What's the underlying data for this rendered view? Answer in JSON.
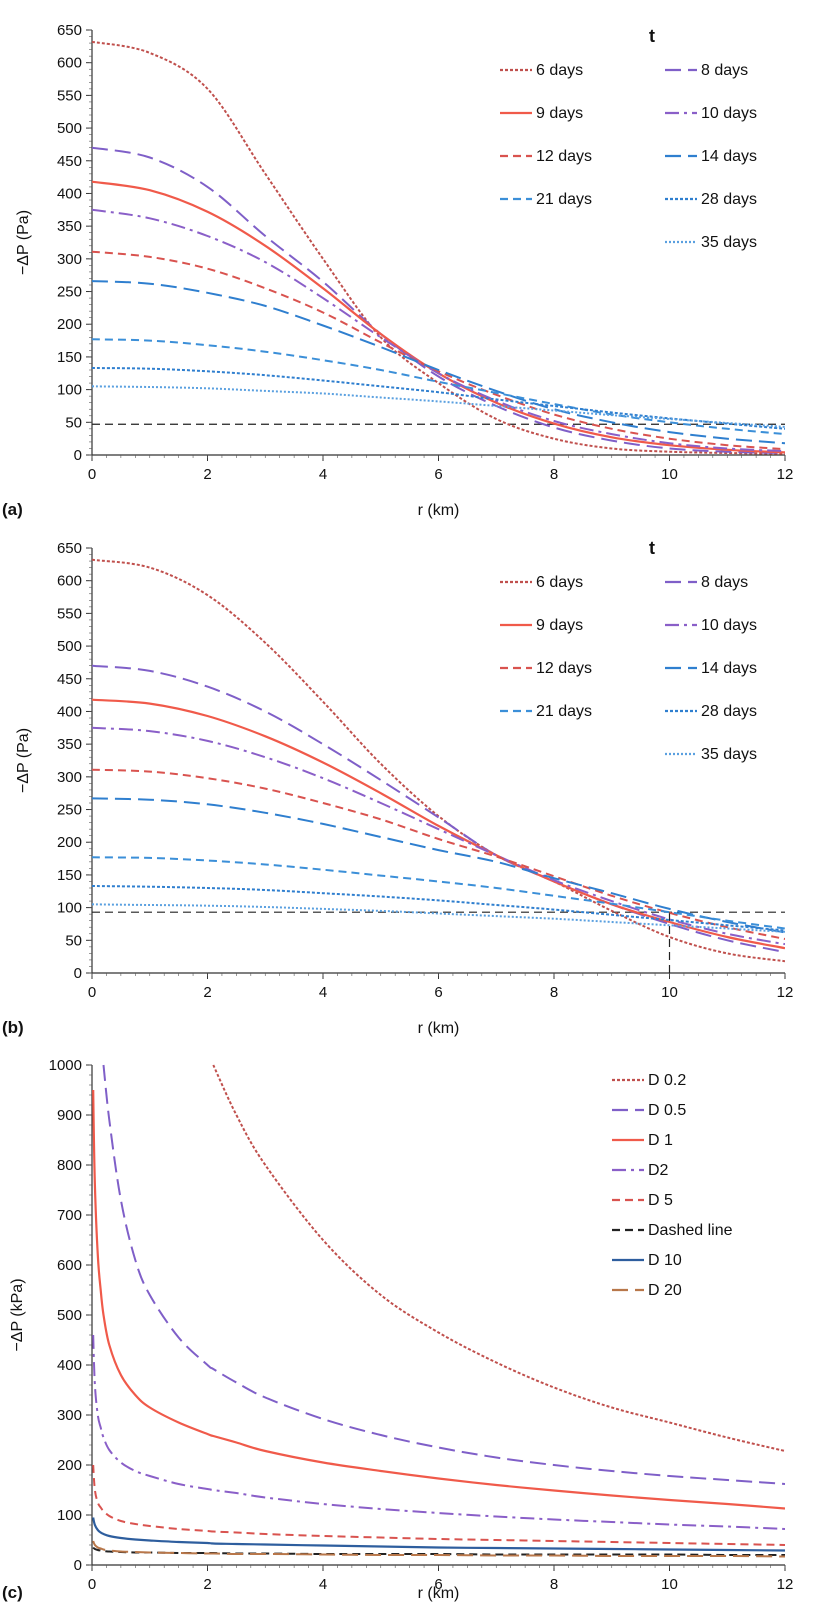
{
  "figure": {
    "panels": [
      "(a)",
      "(b)",
      "(c)"
    ]
  },
  "chart_data": [
    {
      "type": "line",
      "panel_label": "(a)",
      "xlabel": "r (km)",
      "ylabel": "−ΔP (Pa)",
      "xlim": [
        0,
        12
      ],
      "ylim": [
        0,
        650
      ],
      "xticks": [
        0,
        2,
        4,
        6,
        8,
        10,
        12
      ],
      "yticks": [
        0,
        50,
        100,
        150,
        200,
        250,
        300,
        350,
        400,
        450,
        500,
        550,
        600,
        650
      ],
      "grid": false,
      "legend_title": "t",
      "legend_position": "top-right",
      "x": [
        0,
        1,
        2,
        3,
        4,
        5,
        6,
        7,
        8,
        9,
        10,
        11,
        12
      ],
      "series": [
        {
          "name": "6  days",
          "color": "#c0504d",
          "style": "dotted-dense",
          "values": [
            632,
            615,
            560,
            430,
            300,
            180,
            110,
            55,
            25,
            10,
            5,
            3,
            2
          ]
        },
        {
          "name": "8  days",
          "color": "#7f5fc8",
          "style": "long-dash",
          "values": [
            470,
            455,
            410,
            335,
            265,
            185,
            120,
            75,
            42,
            22,
            10,
            5,
            3
          ]
        },
        {
          "name": "9  days",
          "color": "#f05a4a",
          "style": "solid",
          "values": [
            418,
            405,
            372,
            320,
            255,
            185,
            125,
            80,
            48,
            27,
            15,
            8,
            4
          ]
        },
        {
          "name": "10  days",
          "color": "#8a5fc8",
          "style": "dash-dot",
          "values": [
            375,
            362,
            335,
            295,
            240,
            180,
            125,
            83,
            52,
            32,
            18,
            10,
            6
          ]
        },
        {
          "name": "12  days",
          "color": "#d9534f",
          "style": "dash",
          "values": [
            311,
            303,
            285,
            255,
            218,
            172,
            128,
            92,
            62,
            40,
            25,
            15,
            9
          ]
        },
        {
          "name": "14  days",
          "color": "#2f7fcf",
          "style": "long-dash",
          "values": [
            266,
            262,
            248,
            228,
            198,
            165,
            130,
            98,
            70,
            50,
            35,
            25,
            18
          ]
        },
        {
          "name": "21  days",
          "color": "#3b8fd8",
          "style": "dash",
          "values": [
            177,
            175,
            168,
            158,
            145,
            130,
            112,
            95,
            78,
            62,
            50,
            40,
            32
          ]
        },
        {
          "name": "28 days",
          "color": "#2f7fcf",
          "style": "dotted-dense",
          "values": [
            133,
            132,
            128,
            122,
            114,
            105,
            96,
            85,
            75,
            65,
            56,
            48,
            40
          ]
        },
        {
          "name": "35  days",
          "color": "#5aa0e0",
          "style": "dotted",
          "values": [
            105,
            104,
            102,
            98,
            94,
            88,
            82,
            75,
            68,
            61,
            55,
            49,
            43
          ]
        }
      ],
      "reference_lines": [
        {
          "orientation": "horizontal",
          "value": 47,
          "from": 0,
          "to": 12,
          "color": "#222222",
          "style": "dash"
        }
      ]
    },
    {
      "type": "line",
      "panel_label": "(b)",
      "xlabel": "r (km)",
      "ylabel": "−ΔP (Pa)",
      "xlim": [
        0,
        12
      ],
      "ylim": [
        0,
        650
      ],
      "xticks": [
        0,
        2,
        4,
        6,
        8,
        10,
        12
      ],
      "yticks": [
        0,
        50,
        100,
        150,
        200,
        250,
        300,
        350,
        400,
        450,
        500,
        550,
        600,
        650
      ],
      "grid": false,
      "legend_title": "t",
      "legend_position": "top-right",
      "x": [
        0,
        1,
        2,
        3,
        4,
        5,
        6,
        7,
        8,
        9,
        10,
        11,
        12
      ],
      "series": [
        {
          "name": "6  days",
          "color": "#c0504d",
          "style": "dotted-dense",
          "values": [
            632,
            620,
            578,
            505,
            415,
            320,
            240,
            180,
            140,
            95,
            55,
            30,
            18
          ]
        },
        {
          "name": "8  days",
          "color": "#7f5fc8",
          "style": "long-dash",
          "values": [
            470,
            462,
            438,
            400,
            350,
            295,
            238,
            180,
            140,
            105,
            75,
            50,
            32
          ]
        },
        {
          "name": "9  days",
          "color": "#f05a4a",
          "style": "solid",
          "values": [
            418,
            412,
            393,
            362,
            322,
            275,
            225,
            180,
            140,
            105,
            78,
            55,
            38
          ]
        },
        {
          "name": "10  days",
          "color": "#8a5fc8",
          "style": "dash-dot",
          "values": [
            375,
            370,
            355,
            330,
            298,
            260,
            220,
            180,
            142,
            110,
            82,
            60,
            44
          ]
        },
        {
          "name": "12  days",
          "color": "#d9534f",
          "style": "dash",
          "values": [
            311,
            308,
            298,
            282,
            260,
            235,
            205,
            178,
            148,
            118,
            92,
            70,
            52
          ]
        },
        {
          "name": "14  days",
          "color": "#2f7fcf",
          "style": "long-dash",
          "values": [
            267,
            265,
            258,
            245,
            228,
            208,
            188,
            170,
            145,
            122,
            98,
            78,
            62
          ]
        },
        {
          "name": "21  days",
          "color": "#3b8fd8",
          "style": "dash",
          "values": [
            177,
            176,
            172,
            166,
            158,
            149,
            140,
            130,
            118,
            106,
            93,
            80,
            68
          ]
        },
        {
          "name": "28 days",
          "color": "#2f7fcf",
          "style": "dotted-dense",
          "values": [
            133,
            132,
            130,
            127,
            122,
            117,
            111,
            104,
            97,
            89,
            81,
            73,
            65
          ]
        },
        {
          "name": "35  days",
          "color": "#5aa0e0",
          "style": "dotted",
          "values": [
            105,
            104,
            103,
            101,
            98,
            95,
            91,
            87,
            83,
            78,
            73,
            68,
            63
          ]
        }
      ],
      "reference_lines": [
        {
          "orientation": "horizontal",
          "value": 93,
          "from": 0,
          "to": 12,
          "color": "#222222",
          "style": "dash"
        },
        {
          "orientation": "vertical",
          "value": 10,
          "from": 0,
          "to": 93,
          "color": "#222222",
          "style": "dash"
        }
      ]
    },
    {
      "type": "line",
      "panel_label": "(c)",
      "xlabel": "r (km)",
      "ylabel": "−ΔP (kPa)",
      "xlim": [
        0,
        12
      ],
      "ylim": [
        0,
        1000
      ],
      "xticks": [
        0,
        2,
        4,
        6,
        8,
        10,
        12
      ],
      "yticks": [
        0,
        100,
        200,
        300,
        400,
        500,
        600,
        700,
        800,
        900,
        1000
      ],
      "grid": false,
      "legend_position": "top-right",
      "x": [
        0.02,
        0.05,
        0.1,
        0.15,
        0.2,
        0.3,
        0.5,
        0.75,
        1,
        1.5,
        2,
        2.1,
        2.5,
        3,
        4,
        5,
        6,
        7,
        8,
        9,
        10,
        11,
        12
      ],
      "series": [
        {
          "name": "D 0.2",
          "color": "#c0504d",
          "style": "dotted-dense",
          "values": [
            null,
            null,
            null,
            null,
            null,
            null,
            null,
            null,
            null,
            null,
            null,
            1000,
            900,
            800,
            650,
            540,
            465,
            405,
            355,
            315,
            285,
            255,
            228
          ]
        },
        {
          "name": "D 0.5",
          "color": "#7f5fc8",
          "style": "long-dash",
          "values": [
            null,
            null,
            null,
            null,
            1000,
            890,
            730,
            610,
            540,
            455,
            400,
            392,
            365,
            335,
            292,
            260,
            235,
            215,
            200,
            188,
            178,
            170,
            162
          ]
        },
        {
          "name": "D 1",
          "color": "#f05a4a",
          "style": "solid",
          "values": [
            950,
            760,
            620,
            550,
            500,
            440,
            380,
            340,
            315,
            285,
            262,
            258,
            245,
            228,
            205,
            188,
            173,
            160,
            149,
            139,
            130,
            122,
            113
          ]
        },
        {
          "name": "D2",
          "color": "#8a5fc8",
          "style": "dash-dot",
          "values": [
            460,
            360,
            300,
            275,
            255,
            230,
            205,
            188,
            178,
            162,
            152,
            150,
            144,
            135,
            122,
            112,
            104,
            97,
            91,
            86,
            81,
            77,
            72
          ]
        },
        {
          "name": "D 5",
          "color": "#d9534f",
          "style": "dash",
          "values": [
            200,
            150,
            125,
            115,
            108,
            98,
            88,
            82,
            78,
            72,
            68,
            67,
            65,
            62,
            58,
            55,
            52,
            50,
            48,
            46,
            44,
            42,
            40
          ]
        },
        {
          "name": "Dashed line",
          "color": "#222222",
          "style": "dash",
          "values": [
            35,
            32,
            30,
            29,
            28,
            27,
            26,
            25,
            25,
            24,
            24,
            24,
            23,
            23,
            22,
            22,
            22,
            21,
            21,
            21,
            21,
            20,
            20
          ]
        },
        {
          "name": "D 10",
          "color": "#2e5e9e",
          "style": "solid",
          "values": [
            95,
            80,
            70,
            65,
            62,
            58,
            54,
            51,
            49,
            46,
            44,
            43,
            42,
            41,
            39,
            37,
            35,
            34,
            33,
            32,
            31,
            30,
            29
          ]
        },
        {
          "name": "D 20",
          "color": "#b8774a",
          "style": "long-dash",
          "values": [
            48,
            40,
            35,
            33,
            31,
            29,
            27,
            26,
            25,
            24,
            23,
            23,
            22,
            22,
            21,
            20,
            20,
            19,
            19,
            18,
            18,
            18,
            17
          ]
        }
      ]
    }
  ]
}
